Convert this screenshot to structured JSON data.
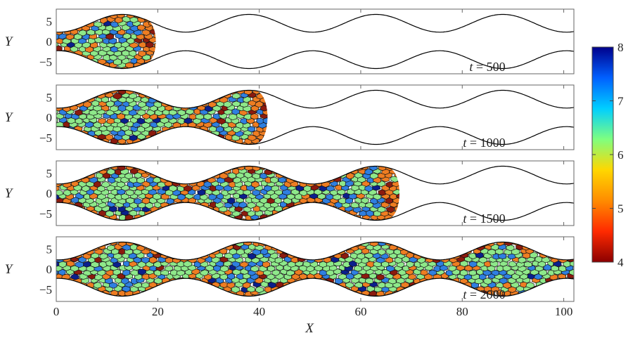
{
  "chart_data": {
    "type": "heatmap",
    "x": {
      "label": "X",
      "range": [
        0,
        102
      ],
      "ticks": [
        0,
        20,
        40,
        60,
        80,
        100
      ]
    },
    "y": {
      "label": "Y",
      "range": [
        -8,
        8
      ],
      "ticks": [
        5,
        0,
        -5
      ]
    },
    "channel": {
      "mean_half_width": 4.5,
      "amplitude": 2.2,
      "wavelength": 25,
      "first_peak_x": 13
    },
    "panels": [
      {
        "time_label": "t = 500",
        "front_x": 17
      },
      {
        "time_label": "t = 1000",
        "front_x": 39
      },
      {
        "time_label": "t = 1500",
        "front_x": 65
      },
      {
        "time_label": "t = 2000",
        "front_x": 102
      }
    ],
    "colorbar": {
      "min": 4,
      "max": 8,
      "ticks": [
        8,
        7,
        6,
        5,
        4
      ],
      "colormap": "jet",
      "stops": [
        "#8b0000",
        "#ff2a00",
        "#ff8c00",
        "#ffd700",
        "#7fff7f",
        "#00cfff",
        "#0060ff",
        "#00008b"
      ]
    },
    "cell_palette": {
      "4": "#8b1a0e",
      "5": "#ee7d22",
      "6": "#8ee88a",
      "7": "#2f7fe0",
      "8": "#0b1f8c"
    }
  }
}
